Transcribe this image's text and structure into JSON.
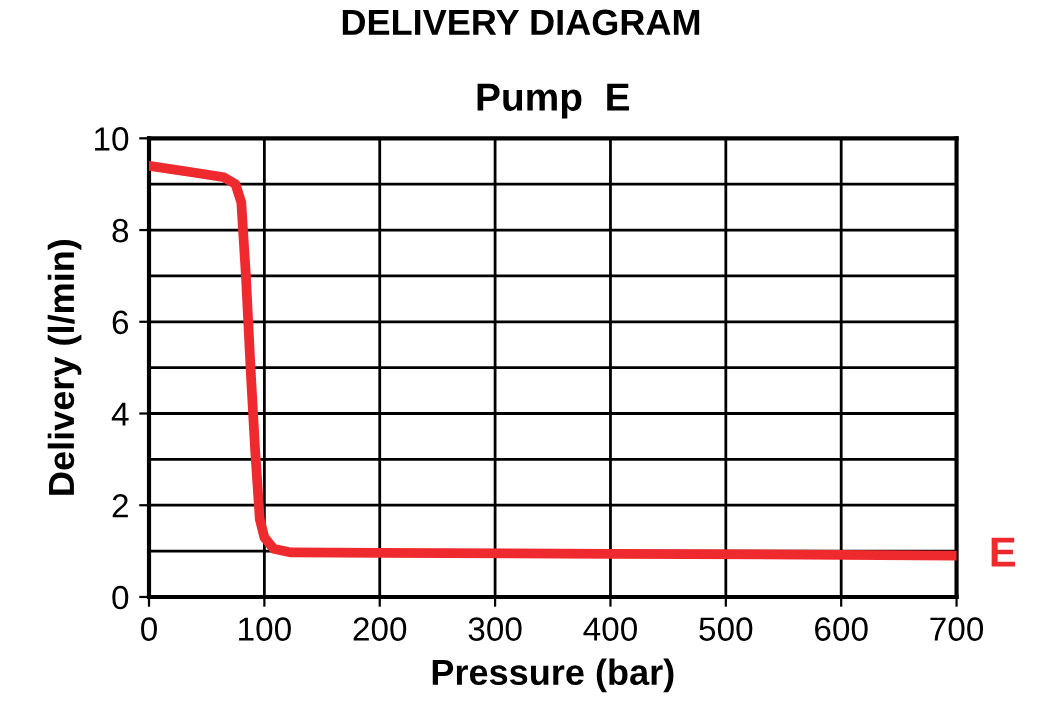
{
  "chart_data": {
    "type": "line",
    "title": "DELIVERY DIAGRAM",
    "subtitle": "Pump  E",
    "xlabel": "Pressure (bar)",
    "ylabel": "Delivery (l/min)",
    "xlim": [
      0,
      700
    ],
    "ylim": [
      0,
      10
    ],
    "xticks": [
      0,
      100,
      200,
      300,
      400,
      500,
      600,
      700
    ],
    "yticks": [
      0,
      {
        "value": 1,
        "label": null
      },
      2,
      {
        "value": 3,
        "label": null
      },
      4,
      {
        "value": 5,
        "label": null
      },
      6,
      {
        "value": 7,
        "label": null
      },
      8,
      {
        "value": 9,
        "label": null
      },
      10
    ],
    "grid": true,
    "legend": false,
    "marker": "none",
    "line_style": "solid",
    "series": [
      {
        "name": "E",
        "color": "#ee2a2f",
        "x": [
          0,
          40,
          65,
          75,
          80,
          84,
          88,
          92,
          96,
          100,
          108,
          123,
          200,
          400,
          600,
          700
        ],
        "values": [
          9.4,
          9.25,
          9.15,
          9.0,
          8.6,
          7.0,
          5.0,
          3.2,
          1.7,
          1.3,
          1.05,
          0.97,
          0.96,
          0.94,
          0.92,
          0.9
        ]
      }
    ]
  }
}
